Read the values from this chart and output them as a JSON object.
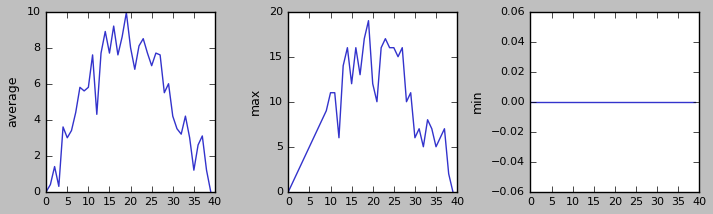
{
  "line_color": "#3333cc",
  "background_color": "#ffffff",
  "fig_width": 7.13,
  "fig_height": 2.14,
  "dpi": 100,
  "ylabels": [
    "average",
    "max",
    "min"
  ],
  "xlim": [
    0,
    40
  ],
  "avg_ylim": [
    0,
    10
  ],
  "max_ylim": [
    0,
    20
  ],
  "min_ylim": [
    -0.06,
    0.06
  ],
  "xticks": [
    0,
    5,
    10,
    15,
    20,
    25,
    30,
    35,
    40
  ],
  "avg_yticks": [
    0,
    2,
    4,
    6,
    8,
    10
  ],
  "max_yticks": [
    0,
    5,
    10,
    15,
    20
  ],
  "min_yticks": [
    -0.06,
    -0.04,
    -0.02,
    0.0,
    0.02,
    0.04,
    0.06
  ]
}
